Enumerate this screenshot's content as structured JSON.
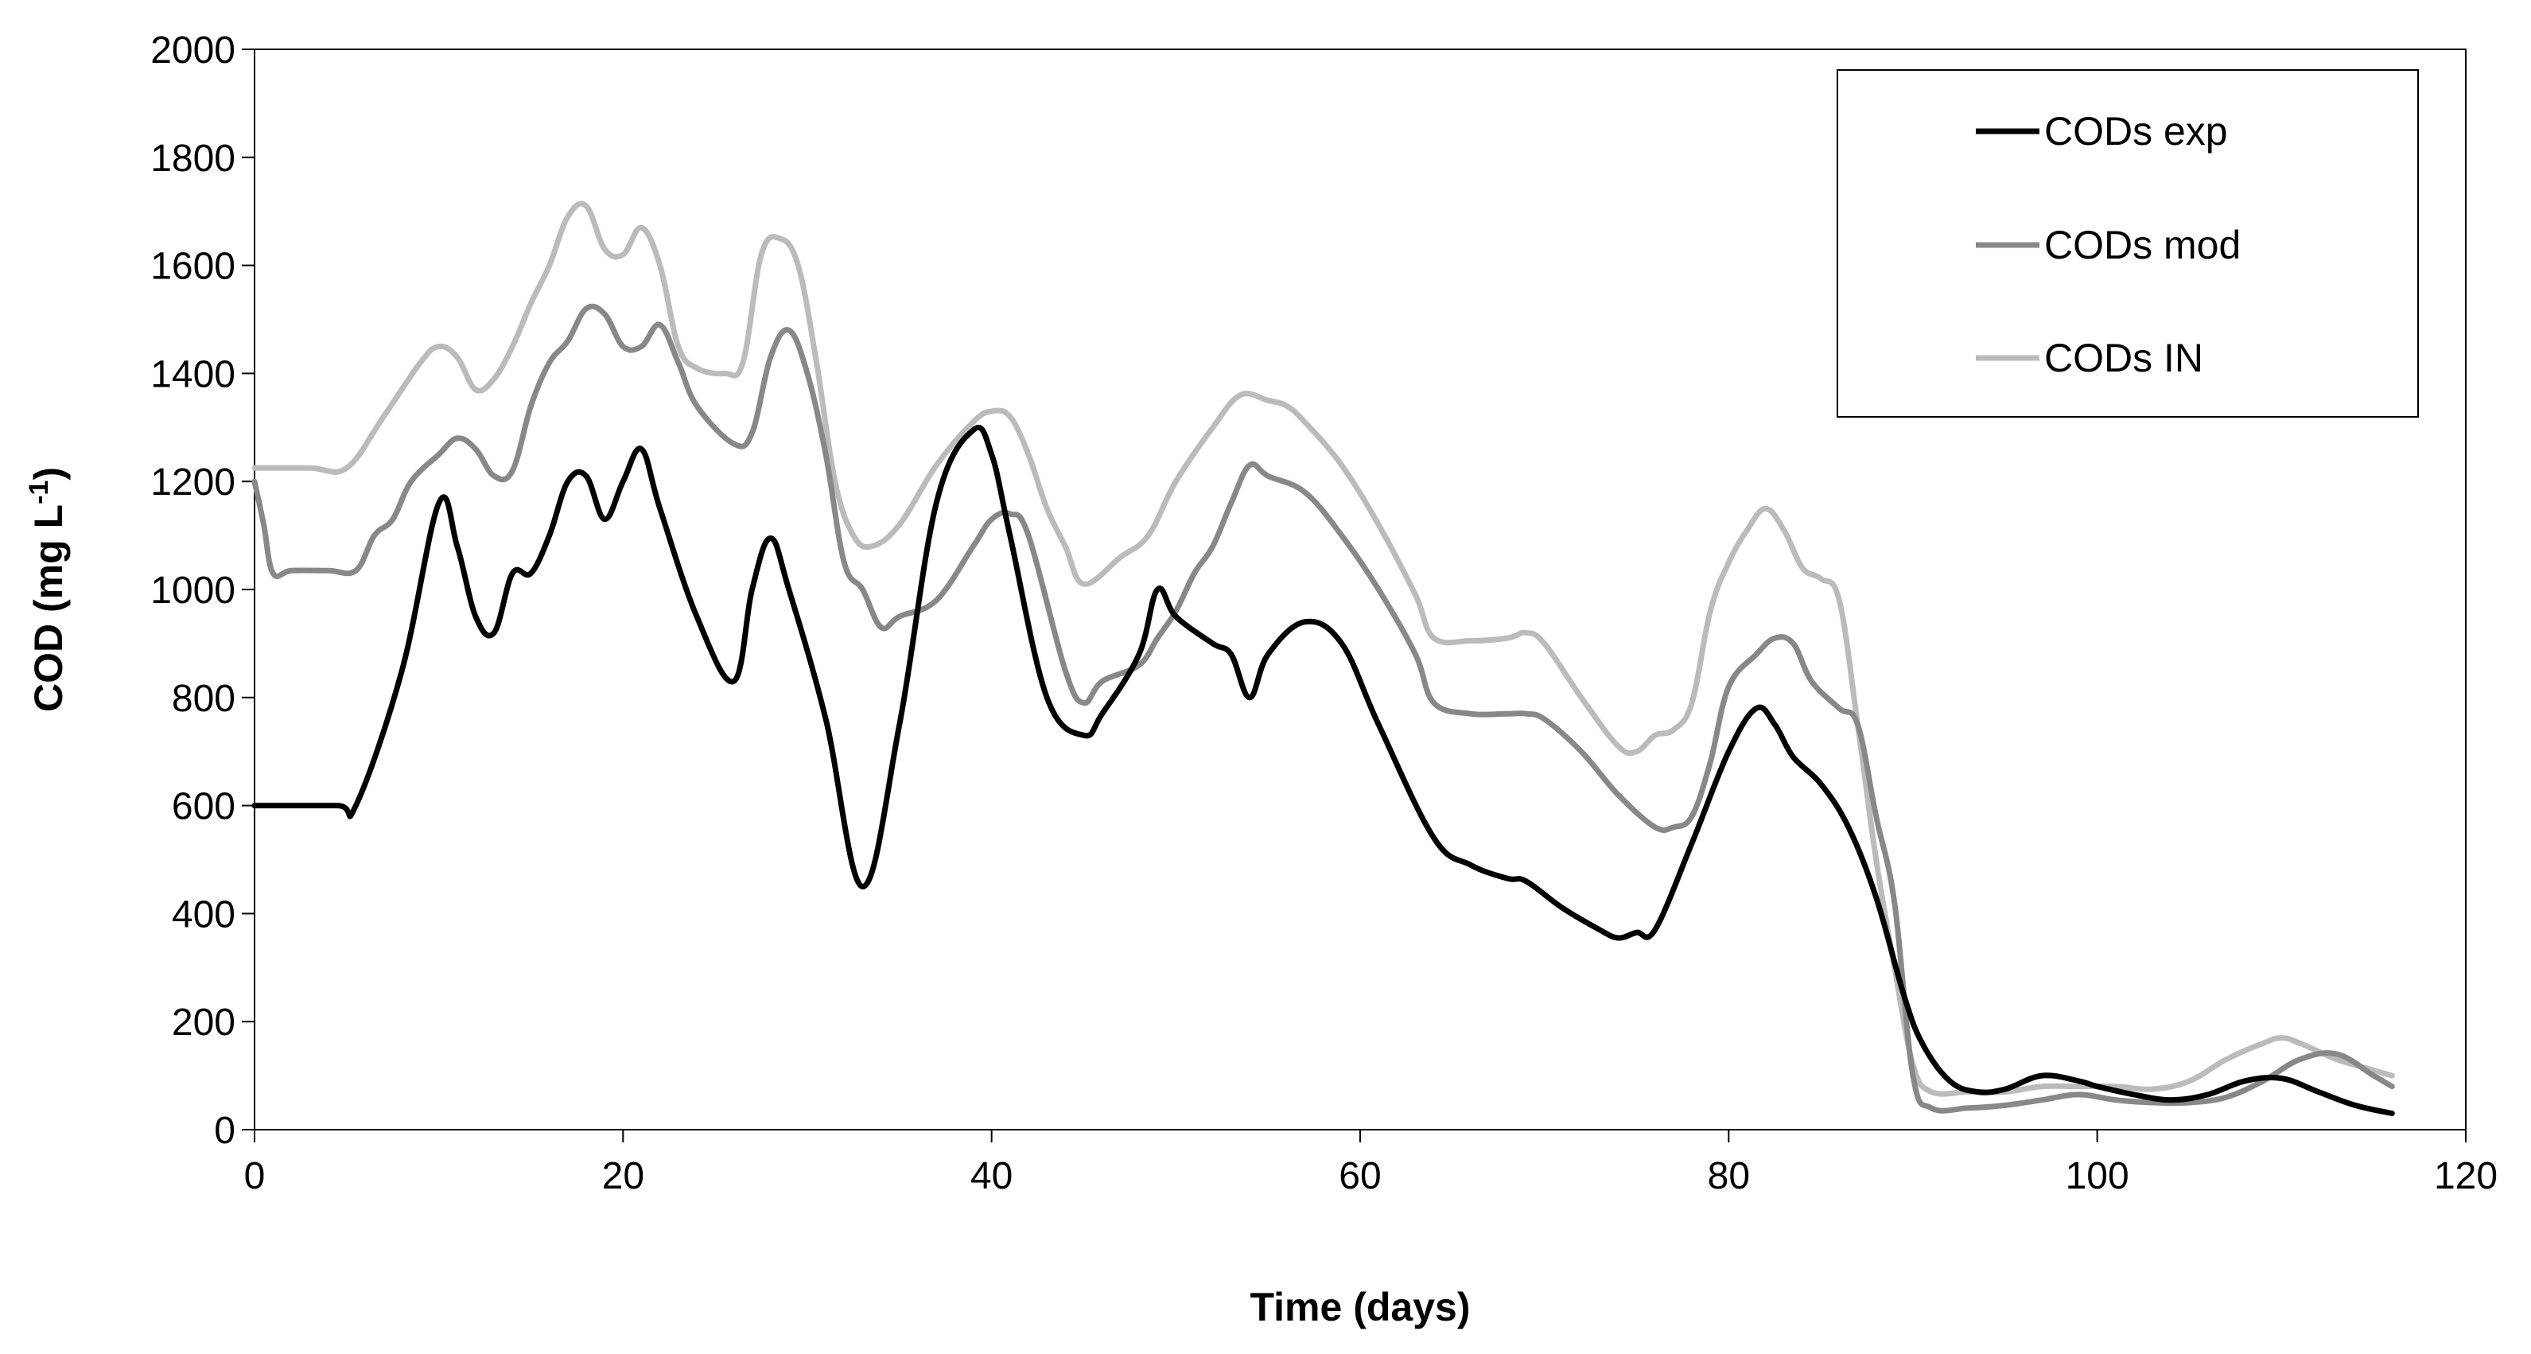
{
  "chart_data": {
    "type": "line",
    "title": "",
    "xlabel": "Time (days)",
    "ylabel_main": "COD (mg L",
    "ylabel_sup": "-1",
    "ylabel_end": ")",
    "xlim": [
      0,
      120
    ],
    "ylim": [
      0,
      2000
    ],
    "xticks": [
      0,
      20,
      40,
      60,
      80,
      100,
      120
    ],
    "yticks": [
      0,
      200,
      400,
      600,
      800,
      1000,
      1200,
      1400,
      1600,
      1800,
      2000
    ],
    "grid": false,
    "legend_position": "top-right",
    "series": [
      {
        "name": "CODs exp",
        "color": "#000000",
        "x": [
          0,
          4.5,
          5.5,
          8,
          10,
          11,
          12,
          13,
          14,
          15,
          16,
          17,
          18,
          19,
          20,
          21,
          22,
          24,
          26,
          27,
          28,
          29,
          31,
          33,
          35,
          37,
          39,
          40,
          41,
          43,
          45,
          46,
          48,
          49,
          50,
          52,
          53,
          54,
          55,
          57,
          59,
          61,
          64,
          66,
          68,
          69,
          71,
          73,
          74,
          75,
          76,
          78,
          80,
          81.5,
          82.5,
          83.5,
          85,
          86.5,
          88,
          89.5,
          90.5,
          92,
          93.5,
          95,
          97,
          99,
          100,
          102,
          104,
          106,
          108,
          110,
          112,
          114,
          116
        ],
        "y": [
          600,
          600,
          600,
          850,
          1160,
          1080,
          950,
          920,
          1030,
          1030,
          1100,
          1200,
          1210,
          1130,
          1200,
          1260,
          1150,
          950,
          830,
          1000,
          1095,
          1000,
          760,
          450,
          750,
          1160,
          1295,
          1250,
          1100,
          800,
          730,
          770,
          880,
          1000,
          950,
          900,
          880,
          800,
          880,
          940,
          900,
          750,
          540,
          490,
          465,
          460,
          410,
          370,
          355,
          365,
          370,
          530,
          700,
          780,
          750,
          690,
          640,
          560,
          430,
          250,
          160,
          90,
          70,
          75,
          100,
          90,
          80,
          65,
          55,
          65,
          90,
          95,
          70,
          45,
          30
        ]
      },
      {
        "name": "CODs mod",
        "color": "#888888",
        "x": [
          0,
          0.5,
          1,
          2,
          4,
          5.5,
          6.5,
          7.5,
          8.5,
          10,
          11,
          12,
          13,
          14,
          15,
          16,
          17,
          18,
          19,
          20,
          21,
          22,
          23,
          24,
          26,
          27,
          28,
          29,
          30,
          31,
          32,
          33,
          34,
          35,
          37,
          39,
          40,
          41,
          42,
          44,
          45,
          46,
          48,
          49,
          50,
          51,
          52,
          53,
          54,
          55,
          57,
          59,
          61,
          63,
          64,
          66,
          68,
          69,
          70,
          72,
          74,
          76,
          77,
          78,
          79,
          80,
          81.5,
          82.5,
          83.5,
          84.5,
          86,
          87,
          88,
          89,
          90,
          91,
          93,
          95,
          97,
          99,
          101,
          103,
          105,
          107,
          109,
          111,
          113,
          115,
          116
        ],
        "y": [
          1200,
          1120,
          1030,
          1035,
          1035,
          1035,
          1100,
          1130,
          1200,
          1250,
          1280,
          1260,
          1210,
          1220,
          1340,
          1420,
          1460,
          1520,
          1510,
          1450,
          1450,
          1490,
          1420,
          1340,
          1270,
          1290,
          1430,
          1480,
          1400,
          1250,
          1050,
          1000,
          930,
          950,
          980,
          1080,
          1130,
          1140,
          1100,
          850,
          790,
          830,
          860,
          910,
          960,
          1030,
          1080,
          1160,
          1230,
          1210,
          1180,
          1100,
          1000,
          880,
          790,
          770,
          770,
          770,
          760,
          700,
          620,
          560,
          560,
          580,
          680,
          820,
          880,
          910,
          900,
          830,
          780,
          750,
          580,
          420,
          100,
          40,
          40,
          45,
          55,
          65,
          55,
          50,
          50,
          60,
          90,
          130,
          140,
          100,
          80
        ]
      },
      {
        "name": "CODs IN",
        "color": "#bbbbbb",
        "x": [
          0,
          3,
          5,
          7,
          9,
          10,
          11,
          12,
          13,
          14,
          15,
          16,
          17,
          18,
          19,
          20,
          21,
          22,
          23,
          24,
          25.5,
          26.5,
          27.5,
          28.5,
          29.5,
          30.5,
          31.5,
          32.5,
          33.5,
          35,
          37,
          39,
          40,
          41,
          42,
          43,
          44,
          45,
          47,
          48.5,
          50,
          52,
          53.5,
          55,
          56,
          57,
          59,
          61,
          63,
          64,
          66,
          68,
          69,
          70,
          72,
          74,
          75,
          76,
          77,
          78,
          79,
          80,
          81,
          82,
          83,
          84,
          85,
          86,
          87,
          88,
          89,
          90,
          91,
          93,
          95,
          97,
          99,
          101,
          103,
          105,
          107,
          109,
          110,
          111,
          113,
          115,
          116
        ],
        "y": [
          1225,
          1225,
          1225,
          1320,
          1420,
          1450,
          1430,
          1370,
          1390,
          1450,
          1530,
          1600,
          1690,
          1710,
          1630,
          1620,
          1670,
          1600,
          1450,
          1410,
          1400,
          1420,
          1620,
          1650,
          1600,
          1420,
          1200,
          1100,
          1080,
          1120,
          1230,
          1310,
          1330,
          1320,
          1250,
          1150,
          1080,
          1010,
          1060,
          1100,
          1200,
          1300,
          1360,
          1350,
          1340,
          1310,
          1230,
          1120,
          990,
          910,
          905,
          910,
          920,
          900,
          800,
          710,
          700,
          730,
          740,
          790,
          960,
          1050,
          1110,
          1150,
          1110,
          1040,
          1020,
          980,
          750,
          500,
          300,
          120,
          70,
          70,
          70,
          80,
          80,
          80,
          75,
          90,
          130,
          160,
          170,
          160,
          130,
          110,
          100
        ]
      }
    ]
  }
}
